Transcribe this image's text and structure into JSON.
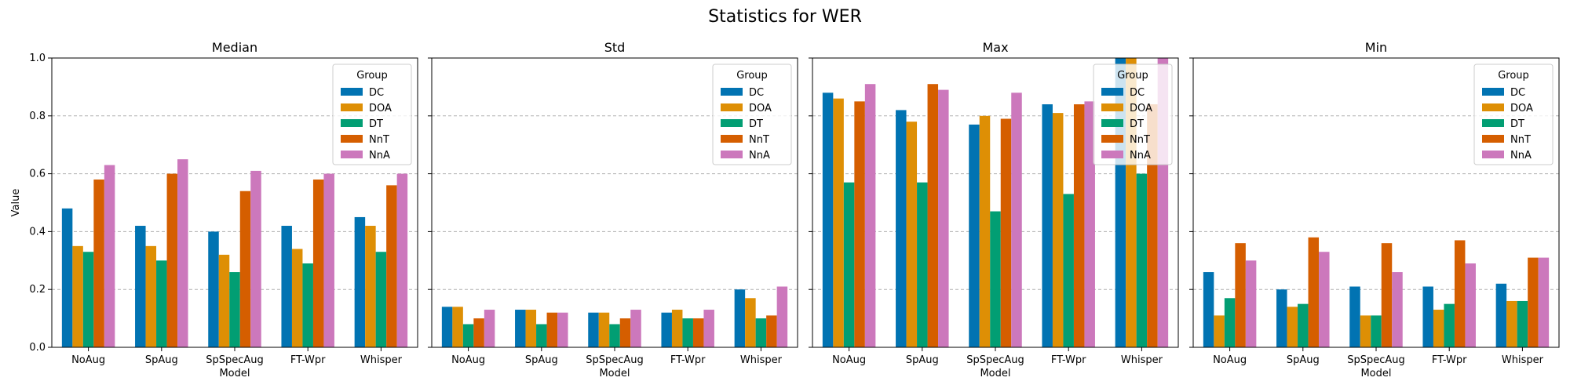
{
  "figure": {
    "title": "Statistics for WER"
  },
  "colors": {
    "DC": "#0173b2",
    "DOA": "#de8f05",
    "DT": "#029e73",
    "NnT": "#d55e00",
    "NnA": "#cc78bc"
  },
  "legend": {
    "title": "Group",
    "placement": "upper right",
    "entries": [
      "DC",
      "DOA",
      "DT",
      "NnT",
      "NnA"
    ]
  },
  "chart_data": [
    {
      "type": "bar",
      "title": "Median",
      "xlabel": "Model",
      "ylabel": "Value",
      "ylim": [
        0,
        1.0
      ],
      "yticks": [
        "0.0",
        "0.2",
        "0.4",
        "0.6",
        "0.8",
        "1.0"
      ],
      "grid": "y dashed",
      "categories": [
        "NoAug",
        "SpAug",
        "SpSpecAug",
        "FT-Wpr",
        "Whisper"
      ],
      "series": [
        {
          "name": "DC",
          "values": [
            0.48,
            0.42,
            0.4,
            0.42,
            0.45
          ]
        },
        {
          "name": "DOA",
          "values": [
            0.35,
            0.35,
            0.32,
            0.34,
            0.42
          ]
        },
        {
          "name": "DT",
          "values": [
            0.33,
            0.3,
            0.26,
            0.29,
            0.33
          ]
        },
        {
          "name": "NnT",
          "values": [
            0.58,
            0.6,
            0.54,
            0.58,
            0.56
          ]
        },
        {
          "name": "NnA",
          "values": [
            0.63,
            0.65,
            0.61,
            0.6,
            0.6
          ]
        }
      ]
    },
    {
      "type": "bar",
      "title": "Std",
      "xlabel": "Model",
      "ylabel": "",
      "ylim": [
        0,
        1.0
      ],
      "grid": "y dashed",
      "categories": [
        "NoAug",
        "SpAug",
        "SpSpecAug",
        "FT-Wpr",
        "Whisper"
      ],
      "series": [
        {
          "name": "DC",
          "values": [
            0.14,
            0.13,
            0.12,
            0.12,
            0.2
          ]
        },
        {
          "name": "DOA",
          "values": [
            0.14,
            0.13,
            0.12,
            0.13,
            0.17
          ]
        },
        {
          "name": "DT",
          "values": [
            0.08,
            0.08,
            0.08,
            0.1,
            0.1
          ]
        },
        {
          "name": "NnT",
          "values": [
            0.1,
            0.12,
            0.1,
            0.1,
            0.11
          ]
        },
        {
          "name": "NnA",
          "values": [
            0.13,
            0.12,
            0.13,
            0.13,
            0.21
          ]
        }
      ]
    },
    {
      "type": "bar",
      "title": "Max",
      "xlabel": "Model",
      "ylabel": "",
      "ylim": [
        0,
        1.0
      ],
      "grid": "y dashed",
      "categories": [
        "NoAug",
        "SpAug",
        "SpSpecAug",
        "FT-Wpr",
        "Whisper"
      ],
      "series": [
        {
          "name": "DC",
          "values": [
            0.88,
            0.82,
            0.77,
            0.84,
            1.0
          ]
        },
        {
          "name": "DOA",
          "values": [
            0.86,
            0.78,
            0.8,
            0.81,
            1.0
          ]
        },
        {
          "name": "DT",
          "values": [
            0.57,
            0.57,
            0.47,
            0.53,
            0.6
          ]
        },
        {
          "name": "NnT",
          "values": [
            0.85,
            0.91,
            0.79,
            0.84,
            0.84
          ]
        },
        {
          "name": "NnA",
          "values": [
            0.91,
            0.89,
            0.88,
            0.85,
            1.0
          ]
        }
      ]
    },
    {
      "type": "bar",
      "title": "Min",
      "xlabel": "Model",
      "ylabel": "",
      "ylim": [
        0,
        1.0
      ],
      "grid": "y dashed",
      "categories": [
        "NoAug",
        "SpAug",
        "SpSpecAug",
        "FT-Wpr",
        "Whisper"
      ],
      "series": [
        {
          "name": "DC",
          "values": [
            0.26,
            0.2,
            0.21,
            0.21,
            0.22
          ]
        },
        {
          "name": "DOA",
          "values": [
            0.11,
            0.14,
            0.11,
            0.13,
            0.16
          ]
        },
        {
          "name": "DT",
          "values": [
            0.17,
            0.15,
            0.11,
            0.15,
            0.16
          ]
        },
        {
          "name": "NnT",
          "values": [
            0.36,
            0.38,
            0.36,
            0.37,
            0.31
          ]
        },
        {
          "name": "NnA",
          "values": [
            0.3,
            0.33,
            0.26,
            0.29,
            0.31
          ]
        }
      ]
    }
  ]
}
